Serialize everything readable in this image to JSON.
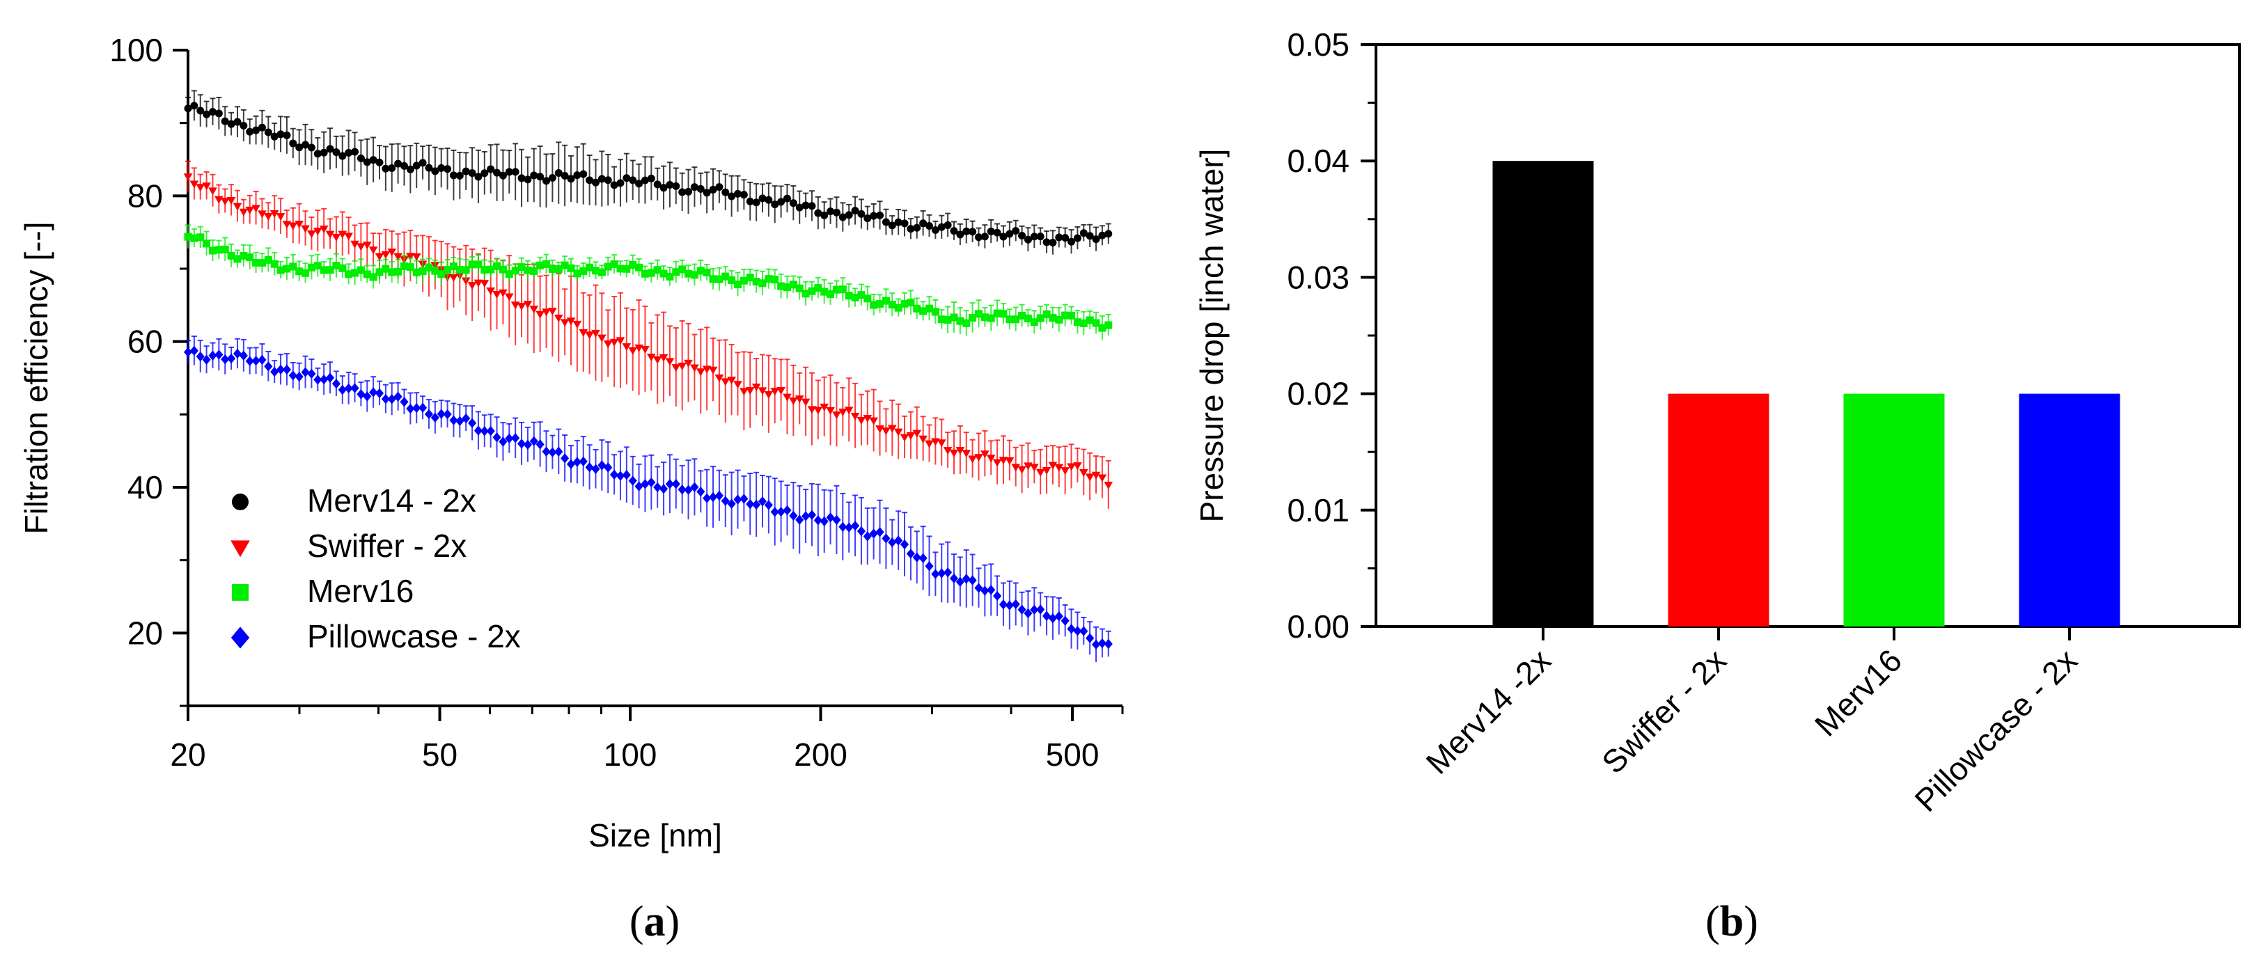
{
  "chart_data": [
    {
      "id": "a",
      "type": "line",
      "panel_label": {
        "open": "(",
        "letter": "a",
        "close": ")"
      },
      "title": "",
      "xlabel": "Size [nm]",
      "ylabel": "Filtration efficiency [--]",
      "xscale": "log",
      "xlim": [
        20,
        600
      ],
      "ylim": [
        10,
        100
      ],
      "xticks": [
        20,
        50,
        100,
        200,
        500
      ],
      "xtick_labels": [
        "20",
        "50",
        "100",
        "200",
        "500"
      ],
      "yticks": [
        20,
        40,
        60,
        80,
        100
      ],
      "ytick_labels": [
        "20",
        "40",
        "60",
        "80",
        "100"
      ],
      "grid": false,
      "legend_position": "bottom-left",
      "series": [
        {
          "name": "Merv14 - 2x",
          "color": "#000000",
          "marker": "circle",
          "x": [
            20,
            25,
            30,
            40,
            50,
            60,
            80,
            100,
            150,
            200,
            300,
            400,
            500,
            570
          ],
          "y": [
            92,
            89.5,
            87,
            84.5,
            83.5,
            83,
            82.5,
            82,
            80,
            78,
            75.5,
            74.5,
            74,
            74.5
          ],
          "err": [
            2,
            2,
            2.5,
            3,
            3,
            3.5,
            4,
            3,
            2.5,
            2,
            1.5,
            1.5,
            1.5,
            1.5
          ]
        },
        {
          "name": "Swiffer - 2x",
          "color": "#ff0000",
          "marker": "triangle-down",
          "x": [
            20,
            25,
            30,
            40,
            50,
            60,
            80,
            100,
            150,
            200,
            300,
            400,
            500,
            570
          ],
          "y": [
            82,
            78,
            76,
            72.5,
            70,
            67,
            62.5,
            59,
            54,
            51,
            46,
            43,
            42.5,
            41
          ],
          "err": [
            2,
            2,
            2.5,
            3,
            4,
            5,
            6,
            6,
            5,
            4.5,
            3,
            3,
            3,
            3
          ]
        },
        {
          "name": "Merv16",
          "color": "#00ee00",
          "marker": "square",
          "x": [
            20,
            25,
            30,
            40,
            50,
            60,
            80,
            100,
            150,
            200,
            300,
            330,
            400,
            500,
            570
          ],
          "y": [
            74.5,
            71,
            70,
            69.5,
            70,
            70,
            70,
            70,
            68.5,
            67,
            64,
            63,
            63.5,
            63,
            62.5
          ],
          "err": [
            1.5,
            1.5,
            1.5,
            1.5,
            1.5,
            1.2,
            1.2,
            1.2,
            1.5,
            1.5,
            1.5,
            2,
            1.5,
            1.5,
            1.5
          ]
        },
        {
          "name": "Pillowcase - 2x",
          "color": "#0000ff",
          "marker": "diamond",
          "x": [
            20,
            25,
            30,
            40,
            50,
            60,
            80,
            100,
            150,
            200,
            250,
            300,
            400,
            500,
            570
          ],
          "y": [
            58.5,
            57.5,
            55.5,
            52.5,
            50,
            47.5,
            44,
            41,
            38,
            35.5,
            33.5,
            29,
            24,
            21,
            18
          ],
          "err": [
            2,
            2,
            2,
            2,
            2,
            2.5,
            3,
            3.5,
            4,
            4.5,
            4,
            4,
            3,
            2.5,
            2
          ]
        }
      ]
    },
    {
      "id": "b",
      "type": "bar",
      "panel_label": {
        "open": "(",
        "letter": "b",
        "close": ")"
      },
      "title": "",
      "xlabel": "",
      "ylabel": "Pressure drop [inch water]",
      "categories": [
        "Merv14 -2x",
        "Swiffer - 2x",
        "Merv16",
        "Pillowcase - 2x"
      ],
      "values": [
        0.04,
        0.02,
        0.02,
        0.02
      ],
      "colors": [
        "#000000",
        "#ff0000",
        "#00ee00",
        "#0000ff"
      ],
      "ylim": [
        0,
        0.05
      ],
      "yticks": [
        0,
        0.01,
        0.02,
        0.03,
        0.04,
        0.05
      ],
      "ytick_labels": [
        "0.00",
        "0.01",
        "0.02",
        "0.03",
        "0.04",
        "0.05"
      ],
      "grid": false
    }
  ]
}
